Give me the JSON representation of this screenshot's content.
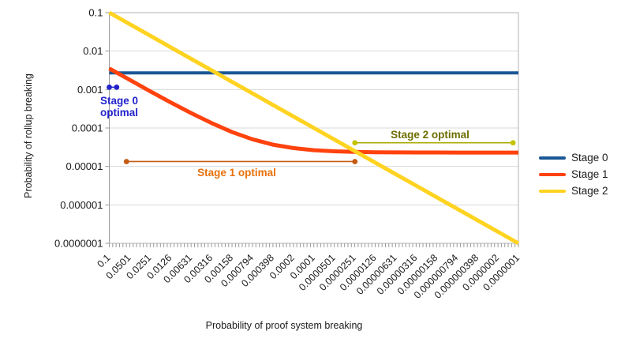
{
  "chart_data": {
    "type": "line",
    "title": "",
    "xlabel": "Probability of proof system breaking",
    "ylabel": "Probability of rollup breaking",
    "x_scale": "log",
    "y_scale": "log",
    "x_range": [
      0.1,
      1e-07
    ],
    "y_range": [
      0.1,
      1e-07
    ],
    "x_axis_descending": true,
    "grid": "horizontal",
    "x_tick_labels": [
      "0.1",
      "0.0501",
      "0.0251",
      "0.0126",
      "0.00631",
      "0.00316",
      "0.00158",
      "0.000794",
      "0.000398",
      "0.0002",
      "0.0001",
      "0.0000501",
      "0.0000251",
      "0.0000126",
      "0.00000631",
      "0.00000316",
      "0.00000158",
      "0.000000794",
      "0.000000398",
      "0.0000002",
      "0.0000001"
    ],
    "y_tick_labels": [
      "0.1",
      "0.01",
      "0.001",
      "0.0001",
      "0.00001",
      "0.000001",
      "0.0000001"
    ],
    "x": [
      0.1,
      0.0501,
      0.0251,
      0.0126,
      0.00631,
      0.00316,
      0.00158,
      0.000794,
      0.000398,
      0.0002,
      0.0001,
      5.01e-05,
      2.51e-05,
      1.26e-05,
      6.31e-06,
      3.16e-06,
      1.58e-06,
      7.94e-07,
      3.98e-07,
      2e-07,
      1e-07
    ],
    "series": [
      {
        "name": "Stage 0",
        "color": "#1A5795",
        "values": [
          0.0027,
          0.0027,
          0.0027,
          0.0027,
          0.0027,
          0.0027,
          0.0027,
          0.0027,
          0.0027,
          0.0027,
          0.0027,
          0.0027,
          0.0027,
          0.0027,
          0.0027,
          0.0027,
          0.0027,
          0.0027,
          0.0027,
          0.0027,
          0.0027
        ]
      },
      {
        "name": "Stage 1",
        "color": "#FF420E",
        "values": [
          0.00352,
          0.00178,
          0.0009,
          0.000464,
          0.000244,
          0.000134,
          7.83e-05,
          5.08e-05,
          3.69e-05,
          3e-05,
          2.65e-05,
          2.48e-05,
          2.39e-05,
          2.34e-05,
          2.32e-05,
          2.31e-05,
          2.31e-05,
          2.3e-05,
          2.3e-05,
          2.3e-05,
          2.3e-05
        ]
      },
      {
        "name": "Stage 2",
        "color": "#FFD320",
        "values": [
          0.1,
          0.0501,
          0.0251,
          0.0126,
          0.00631,
          0.00316,
          0.00158,
          0.000794,
          0.000398,
          0.0002,
          0.0001,
          5.01e-05,
          2.51e-05,
          1.26e-05,
          6.31e-06,
          3.16e-06,
          1.58e-06,
          7.94e-07,
          3.98e-07,
          2e-07,
          1e-07
        ]
      }
    ],
    "legend": {
      "position": "right",
      "entries": [
        {
          "label": "Stage 0",
          "color": "#1A5795"
        },
        {
          "label": "Stage 1",
          "color": "#FF420E"
        },
        {
          "label": "Stage 2",
          "color": "#FFD320"
        }
      ]
    },
    "annotations": [
      {
        "name": "stage-0-optimal",
        "label": "Stage 0 optimal",
        "label_line1": "Stage 0",
        "label_line2": "optimal",
        "x_start": 0.1,
        "x_end": 0.078,
        "y": 0.00115,
        "line_color": "#2222CC",
        "dot_color": "#2222CC",
        "text_color": "#2222CC"
      },
      {
        "name": "stage-1-optimal",
        "label": "Stage 1 optimal",
        "x_start": 0.056,
        "x_end": 2.5e-05,
        "y": 1.34e-05,
        "line_color": "#C55A11",
        "dot_color": "#C55A11",
        "text_color": "#E8700A"
      },
      {
        "name": "stage-2-optimal",
        "label": "Stage 2 optimal",
        "x_start": 2.5e-05,
        "x_end": 1.2e-07,
        "y": 4.12e-05,
        "line_color": "#A9A900",
        "dot_color": "#C3C300",
        "text_color": "#6E6E00"
      }
    ],
    "colors": {
      "gridline": "#D9D9D9",
      "plot_border": "#B3B3B3",
      "axis_line": "#999999",
      "tick": "#999999",
      "tick_label": "#1A1A1A"
    }
  }
}
